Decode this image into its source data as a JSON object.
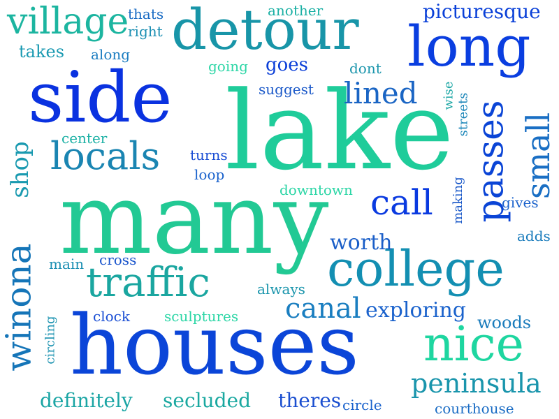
{
  "words": {
    "lake": {
      "text": "lake",
      "color": "#1fcc9a"
    },
    "many": {
      "text": "many",
      "color": "#22c994"
    },
    "houses": {
      "text": "houses",
      "color": "#0b45d8"
    },
    "side": {
      "text": "side",
      "color": "#0a32e0"
    },
    "detour": {
      "text": "detour",
      "color": "#1895a8"
    },
    "long": {
      "text": "long",
      "color": "#0a3ee0"
    },
    "college": {
      "text": "college",
      "color": "#138fb2"
    },
    "nice": {
      "text": "nice",
      "color": "#1ed6a0"
    },
    "traffic": {
      "text": "traffic",
      "color": "#1aa6a0"
    },
    "locals": {
      "text": "locals",
      "color": "#1a85b2"
    },
    "village": {
      "text": "village",
      "color": "#1cb5a0"
    },
    "passes": {
      "text": "passes",
      "color": "#0a44d6"
    },
    "winona": {
      "text": "winona",
      "color": "#1575b8"
    },
    "call": {
      "text": "call",
      "color": "#0a3ae0"
    },
    "small": {
      "text": "small",
      "color": "#1a6fc4"
    },
    "canal": {
      "text": "canal",
      "color": "#1a7ec0"
    },
    "lined": {
      "text": "lined",
      "color": "#1a65c4"
    },
    "peninsula": {
      "text": "peninsula",
      "color": "#1a95ac"
    },
    "shop": {
      "text": "shop",
      "color": "#1a9ab0"
    },
    "exploring": {
      "text": "exploring",
      "color": "#1a62cc"
    },
    "worth": {
      "text": "worth",
      "color": "#1a5ec8"
    },
    "definitely": {
      "text": "definitely",
      "color": "#1aa5a4"
    },
    "secluded": {
      "text": "secluded",
      "color": "#1aa8a0"
    },
    "theres": {
      "text": "theres",
      "color": "#1a4ed0"
    },
    "picturesque": {
      "text": "picturesque",
      "color": "#0a40d8"
    },
    "goes": {
      "text": "goes",
      "color": "#0a3ed8"
    },
    "woods": {
      "text": "woods",
      "color": "#1a7cbc"
    },
    "takes": {
      "text": "takes",
      "color": "#1a9ab2"
    },
    "making": {
      "text": "making",
      "color": "#1a58c8"
    },
    "streets": {
      "text": "streets",
      "color": "#1a85b8"
    },
    "wise": {
      "text": "wise",
      "color": "#1aa6a4"
    },
    "circling": {
      "text": "circling",
      "color": "#1a92b0"
    },
    "thats": {
      "text": "thats",
      "color": "#1a6cc4"
    },
    "right": {
      "text": "right",
      "color": "#1a8eb2"
    },
    "another": {
      "text": "another",
      "color": "#1ab0a4"
    },
    "along": {
      "text": "along",
      "color": "#1a7cc0"
    },
    "going": {
      "text": "going",
      "color": "#2cd6a6"
    },
    "dont": {
      "text": "dont",
      "color": "#1a95ac"
    },
    "suggest": {
      "text": "suggest",
      "color": "#1a58c8"
    },
    "center": {
      "text": "center",
      "color": "#1ab0a4"
    },
    "turns": {
      "text": "turns",
      "color": "#1a4ed4"
    },
    "loop": {
      "text": "loop",
      "color": "#1a62cc"
    },
    "downtown": {
      "text": "downtown",
      "color": "#2cd6a6"
    },
    "gives": {
      "text": "gives",
      "color": "#1a62cc"
    },
    "adds": {
      "text": "adds",
      "color": "#1a7cbc"
    },
    "main": {
      "text": "main",
      "color": "#1a8eb2"
    },
    "cross": {
      "text": "cross",
      "color": "#1a55cc"
    },
    "always": {
      "text": "always",
      "color": "#1a95ac"
    },
    "clock": {
      "text": "clock",
      "color": "#1a4ed4"
    },
    "sculptures": {
      "text": "sculptures",
      "color": "#2cd6a6"
    },
    "circle": {
      "text": "circle",
      "color": "#1a62cc"
    },
    "courthouse": {
      "text": "courthouse",
      "color": "#1a6cc4"
    }
  }
}
